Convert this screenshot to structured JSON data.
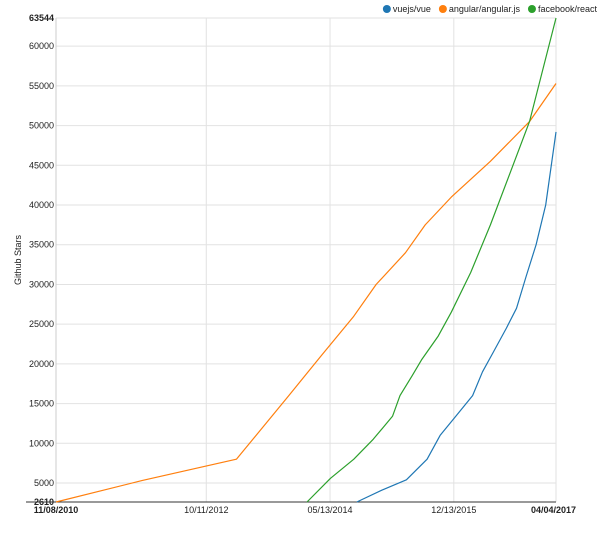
{
  "chart_data": {
    "type": "line",
    "ylabel": "Github Stars",
    "ylim": [
      2610,
      63544
    ],
    "xlim": [
      "2010-11-08",
      "2017-04-04"
    ],
    "grid": true,
    "legend_position": "top-right",
    "y_ticks": [
      2610,
      5000,
      10000,
      15000,
      20000,
      25000,
      30000,
      35000,
      40000,
      45000,
      50000,
      55000,
      60000,
      63544
    ],
    "y_tick_labels": [
      "2610",
      "5000",
      "10000",
      "15000",
      "20000",
      "25000",
      "30000",
      "35000",
      "40000",
      "45000",
      "50000",
      "55000",
      "60000",
      "63544"
    ],
    "x_ticks": [
      "2010-11-08",
      "2012-10-11",
      "2014-05-13",
      "2015-12-13",
      "2017-04-04"
    ],
    "x_tick_labels": [
      "11/08/2010",
      "10/11/2012",
      "05/13/2014",
      "12/13/2015",
      "04/04/2017"
    ],
    "series": [
      {
        "name": "vuejs/vue",
        "color": "#1f77b4",
        "points": [
          [
            "2014-09-15",
            2610
          ],
          [
            "2015-01-10",
            4100
          ],
          [
            "2015-05-05",
            5400
          ],
          [
            "2015-08-10",
            8000
          ],
          [
            "2015-10-10",
            11000
          ],
          [
            "2015-12-25",
            13500
          ],
          [
            "2016-03-10",
            16000
          ],
          [
            "2016-04-25",
            19000
          ],
          [
            "2016-06-15",
            21500
          ],
          [
            "2016-08-15",
            24500
          ],
          [
            "2016-10-01",
            27000
          ],
          [
            "2016-11-15",
            31000
          ],
          [
            "2017-01-01",
            35000
          ],
          [
            "2017-02-15",
            40000
          ],
          [
            "2017-04-04",
            49200
          ]
        ]
      },
      {
        "name": "angular/angular.js",
        "color": "#ff7f0e",
        "points": [
          [
            "2010-11-08",
            2610
          ],
          [
            "2011-12-15",
            5300
          ],
          [
            "2013-03-01",
            8000
          ],
          [
            "2013-06-01",
            11000
          ],
          [
            "2013-11-01",
            16000
          ],
          [
            "2014-04-01",
            21000
          ],
          [
            "2014-09-01",
            26000
          ],
          [
            "2014-12-15",
            30000
          ],
          [
            "2015-05-01",
            34000
          ],
          [
            "2015-08-01",
            37500
          ],
          [
            "2015-12-01",
            41000
          ],
          [
            "2016-06-01",
            45500
          ],
          [
            "2016-12-01",
            50500
          ],
          [
            "2017-04-04",
            55300
          ]
        ]
      },
      {
        "name": "facebook/react",
        "color": "#2ca02c",
        "points": [
          [
            "2014-01-25",
            2610
          ],
          [
            "2014-05-15",
            5600
          ],
          [
            "2014-09-01",
            8000
          ],
          [
            "2014-12-01",
            10500
          ],
          [
            "2015-03-01",
            13400
          ],
          [
            "2015-04-05",
            16000
          ],
          [
            "2015-06-01",
            18500
          ],
          [
            "2015-07-15",
            20500
          ],
          [
            "2015-10-01",
            23500
          ],
          [
            "2015-12-01",
            26500
          ],
          [
            "2016-03-01",
            31500
          ],
          [
            "2016-06-01",
            37500
          ],
          [
            "2016-09-01",
            44000
          ],
          [
            "2016-12-01",
            50500
          ],
          [
            "2017-04-04",
            63544
          ]
        ]
      }
    ]
  }
}
